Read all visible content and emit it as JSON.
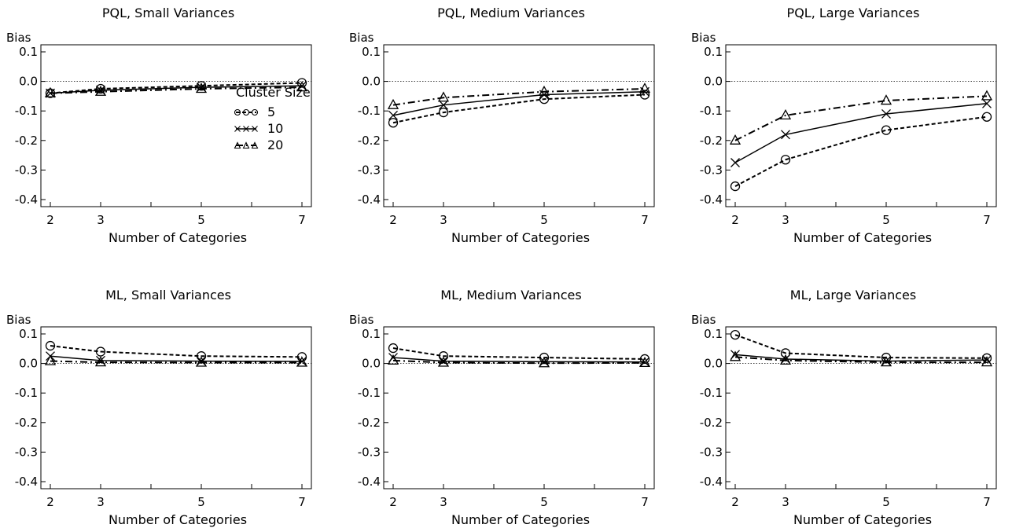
{
  "chart_data": [
    {
      "type": "line",
      "title": "PQL, Small Variances",
      "ylabel": "Bias",
      "xlabel": "Number of Categories",
      "x": [
        2,
        3,
        5,
        7
      ],
      "ylim": [
        -0.4,
        0.1
      ],
      "yticks": [
        "0.1",
        "0.0",
        "-0.1",
        "-0.2",
        "-0.3",
        "-0.4"
      ],
      "xticks": [
        "2",
        "3",
        "5",
        "7"
      ],
      "legend": {
        "title": "Cluster Size",
        "position": "middle-right"
      },
      "series": [
        {
          "name": "5",
          "values": [
            -0.04,
            -0.025,
            -0.015,
            -0.005
          ]
        },
        {
          "name": "10",
          "values": [
            -0.04,
            -0.03,
            -0.02,
            -0.015
          ]
        },
        {
          "name": "20",
          "values": [
            -0.04,
            -0.035,
            -0.025,
            -0.02
          ]
        }
      ]
    },
    {
      "type": "line",
      "title": "PQL, Medium Variances",
      "ylabel": "Bias",
      "xlabel": "Number of Categories",
      "x": [
        2,
        3,
        5,
        7
      ],
      "ylim": [
        -0.4,
        0.1
      ],
      "yticks": [
        "0.1",
        "0.0",
        "-0.1",
        "-0.2",
        "-0.3",
        "-0.4"
      ],
      "xticks": [
        "2",
        "3",
        "5",
        "7"
      ],
      "series": [
        {
          "name": "5",
          "values": [
            -0.14,
            -0.105,
            -0.06,
            -0.045
          ]
        },
        {
          "name": "10",
          "values": [
            -0.115,
            -0.08,
            -0.045,
            -0.035
          ]
        },
        {
          "name": "20",
          "values": [
            -0.08,
            -0.055,
            -0.035,
            -0.025
          ]
        }
      ]
    },
    {
      "type": "line",
      "title": "PQL, Large Variances",
      "ylabel": "Bias",
      "xlabel": "Number of Categories",
      "x": [
        2,
        3,
        5,
        7
      ],
      "ylim": [
        -0.4,
        0.1
      ],
      "yticks": [
        "0.1",
        "0.0",
        "-0.1",
        "-0.2",
        "-0.3",
        "-0.4"
      ],
      "xticks": [
        "2",
        "3",
        "5",
        "7"
      ],
      "series": [
        {
          "name": "5",
          "values": [
            -0.355,
            -0.265,
            -0.165,
            -0.12
          ]
        },
        {
          "name": "10",
          "values": [
            -0.275,
            -0.18,
            -0.11,
            -0.075
          ]
        },
        {
          "name": "20",
          "values": [
            -0.2,
            -0.115,
            -0.065,
            -0.05
          ]
        }
      ]
    },
    {
      "type": "line",
      "title": "ML, Small Variances",
      "ylabel": "Bias",
      "xlabel": "Number of Categories",
      "x": [
        2,
        3,
        5,
        7
      ],
      "ylim": [
        -0.4,
        0.1
      ],
      "yticks": [
        "0.1",
        "0.0",
        "-0.1",
        "-0.2",
        "-0.3",
        "-0.4"
      ],
      "xticks": [
        "2",
        "3",
        "5",
        "7"
      ],
      "series": [
        {
          "name": "5",
          "values": [
            0.06,
            0.04,
            0.025,
            0.022
          ]
        },
        {
          "name": "10",
          "values": [
            0.025,
            0.01,
            0.008,
            0.007
          ]
        },
        {
          "name": "20",
          "values": [
            0.008,
            0.004,
            0.003,
            0.003
          ]
        }
      ]
    },
    {
      "type": "line",
      "title": "ML, Medium Variances",
      "ylabel": "Bias",
      "xlabel": "Number of Categories",
      "x": [
        2,
        3,
        5,
        7
      ],
      "ylim": [
        -0.4,
        0.1
      ],
      "yticks": [
        "0.1",
        "0.0",
        "-0.1",
        "-0.2",
        "-0.3",
        "-0.4"
      ],
      "xticks": [
        "2",
        "3",
        "5",
        "7"
      ],
      "series": [
        {
          "name": "5",
          "values": [
            0.052,
            0.025,
            0.02,
            0.015
          ]
        },
        {
          "name": "10",
          "values": [
            0.02,
            0.008,
            0.006,
            0.005
          ]
        },
        {
          "name": "20",
          "values": [
            0.01,
            0.003,
            0.001,
            0.002
          ]
        }
      ]
    },
    {
      "type": "line",
      "title": "ML, Large Variances",
      "ylabel": "Bias",
      "xlabel": "Number of Categories",
      "x": [
        2,
        3,
        5,
        7
      ],
      "ylim": [
        -0.4,
        0.1
      ],
      "yticks": [
        "0.1",
        "0.0",
        "-0.1",
        "-0.2",
        "-0.3",
        "-0.4"
      ],
      "xticks": [
        "2",
        "3",
        "5",
        "7"
      ],
      "series": [
        {
          "name": "5",
          "values": [
            0.097,
            0.035,
            0.02,
            0.018
          ]
        },
        {
          "name": "10",
          "values": [
            0.03,
            0.015,
            0.008,
            0.012
          ]
        },
        {
          "name": "20",
          "values": [
            0.022,
            0.01,
            0.004,
            0.004
          ]
        }
      ]
    }
  ]
}
